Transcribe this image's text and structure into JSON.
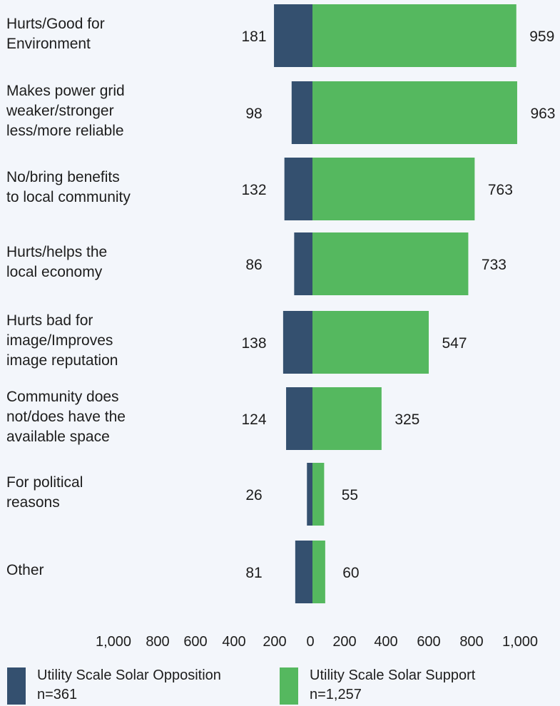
{
  "chart_data": {
    "type": "bar",
    "orientation": "horizontal",
    "layout": "diverging",
    "categories": [
      "Hurts/Good for\nEnvironment",
      "Makes power grid\nweaker/stronger\nless/more reliable",
      "No/bring benefits\nto local community",
      "Hurts/helps the\nlocal economy",
      "Hurts bad for\nimage/Improves\nimage reputation",
      "Community does\nnot/does have the\navailable space",
      "For political\nreasons",
      "Other"
    ],
    "series": [
      {
        "name": "Utility Scale Solar Opposition",
        "n_label": "n=361",
        "color": "#34506f",
        "side": "left",
        "values": [
          181,
          98,
          132,
          86,
          138,
          124,
          26,
          81
        ]
      },
      {
        "name": "Utility Scale Solar Support",
        "n_label": "n=1,257",
        "color": "#55b85f",
        "side": "right",
        "values": [
          959,
          963,
          763,
          733,
          547,
          325,
          55,
          60
        ]
      }
    ],
    "x_ticks": [
      "1,000",
      "800",
      "600",
      "400",
      "200",
      "0",
      "200",
      "400",
      "600",
      "800",
      "1,000"
    ],
    "xlim": [
      -1000,
      1000
    ],
    "legend_position": "bottom",
    "grid": false
  }
}
